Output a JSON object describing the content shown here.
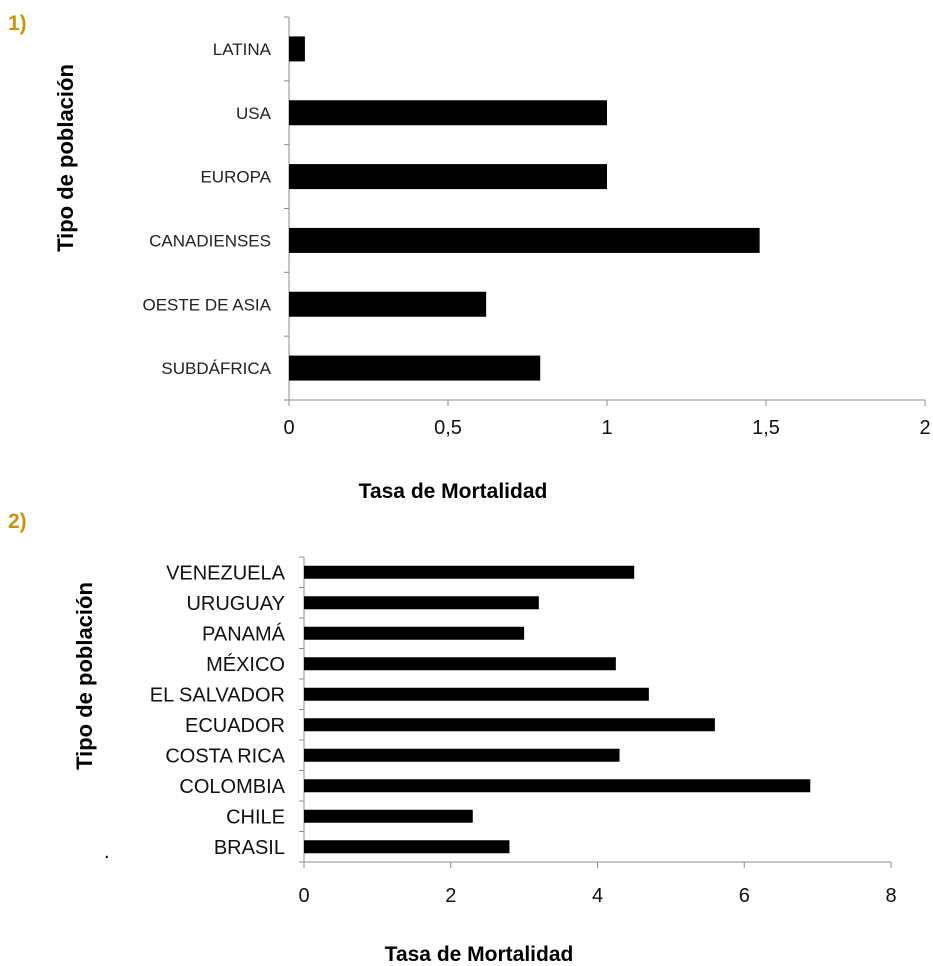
{
  "figure": {
    "panel1_label": "1)",
    "panel2_label": "2)",
    "stray_mark": "."
  },
  "chart_data": [
    {
      "type": "bar",
      "orientation": "horizontal",
      "title": "",
      "xlabel": "Tasa de Mortalidad",
      "ylabel": "Tipo de población",
      "categories": [
        "SUBDÁFRICA",
        "OESTE DE ASIA",
        "CANADIENSES",
        "EUROPA",
        "USA",
        "LATINA"
      ],
      "values": [
        0.79,
        0.62,
        1.48,
        1.0,
        1.0,
        0.05
      ],
      "xlim": [
        0,
        2
      ],
      "xticks": [
        "0",
        "0,5",
        "1",
        "1,5",
        "2"
      ],
      "bar_color": "#000000",
      "grid": false
    },
    {
      "type": "bar",
      "orientation": "horizontal",
      "title": "",
      "xlabel": "Tasa de Mortalidad",
      "ylabel": "Tipo de población",
      "categories": [
        "BRASIL",
        "CHILE",
        "COLOMBIA",
        "COSTA RICA",
        "ECUADOR",
        "EL SALVADOR",
        "MÉXICO",
        "PANAMÁ",
        "URUGUAY",
        "VENEZUELA"
      ],
      "values": [
        2.8,
        2.3,
        6.9,
        4.3,
        5.6,
        4.7,
        4.25,
        3.0,
        3.2,
        4.5
      ],
      "xlim": [
        0,
        8
      ],
      "xticks": [
        "0",
        "2",
        "4",
        "6",
        "8"
      ],
      "bar_color": "#000000",
      "grid": false
    }
  ]
}
